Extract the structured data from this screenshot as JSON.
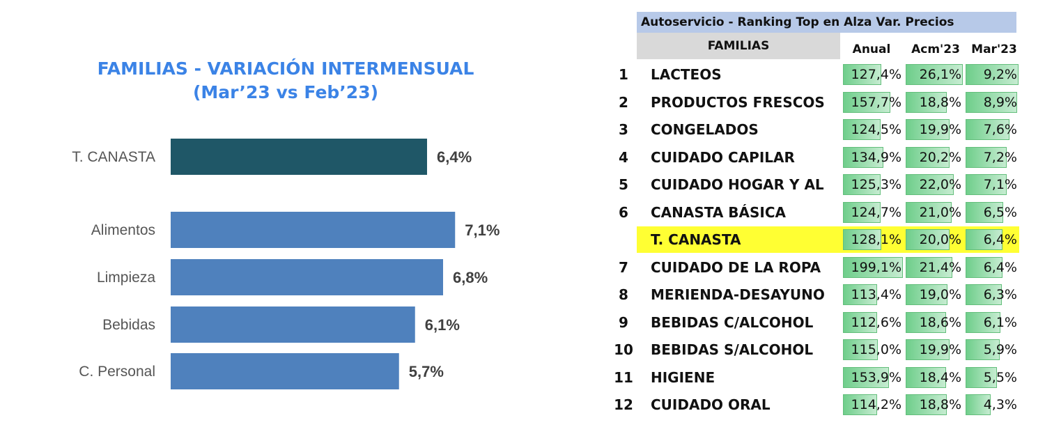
{
  "left_chart": {
    "title_line1": "FAMILIAS - VARIACIÓN INTERMENSUAL",
    "title_line2": "(Mar’23 vs Feb’23)"
  },
  "chart_data": [
    {
      "type": "bar",
      "orientation": "horizontal",
      "title": "FAMILIAS - VARIACIÓN INTERMENSUAL (Mar’23 vs Feb’23)",
      "categories": [
        "T. CANASTA",
        "Alimentos",
        "Limpieza",
        "Bebidas",
        "C. Personal"
      ],
      "values": [
        6.4,
        7.1,
        6.8,
        6.1,
        5.7
      ],
      "value_labels": [
        "6,4%",
        "7,1%",
        "6,8%",
        "6,1%",
        "5,7%"
      ],
      "colors": [
        "#1f5767",
        "#4f81bd",
        "#4f81bd",
        "#4f81bd",
        "#4f81bd"
      ],
      "xlim": [
        0,
        8.5
      ],
      "grid": false
    },
    {
      "type": "table",
      "title": "Autoservicio - Ranking Top en Alza Var. Precios",
      "columns": [
        "FAMILIAS",
        "Anual",
        "Acm'23",
        "Mar'23"
      ],
      "rows": [
        {
          "rank": "1",
          "familia": "LACTEOS",
          "anual": "127,4%",
          "acm": "26,1%",
          "mar": "9,2%",
          "anual_v": 127.4,
          "acm_v": 26.1,
          "mar_v": 9.2
        },
        {
          "rank": "2",
          "familia": "PRODUCTOS FRESCOS",
          "anual": "157,7%",
          "acm": "18,8%",
          "mar": "8,9%",
          "anual_v": 157.7,
          "acm_v": 18.8,
          "mar_v": 8.9
        },
        {
          "rank": "3",
          "familia": "CONGELADOS",
          "anual": "124,5%",
          "acm": "19,9%",
          "mar": "7,6%",
          "anual_v": 124.5,
          "acm_v": 19.9,
          "mar_v": 7.6
        },
        {
          "rank": "4",
          "familia": "CUIDADO CAPILAR",
          "anual": "134,9%",
          "acm": "20,2%",
          "mar": "7,2%",
          "anual_v": 134.9,
          "acm_v": 20.2,
          "mar_v": 7.2
        },
        {
          "rank": "5",
          "familia": "CUIDADO HOGAR Y AL",
          "anual": "125,3%",
          "acm": "22,0%",
          "mar": "7,1%",
          "anual_v": 125.3,
          "acm_v": 22.0,
          "mar_v": 7.1
        },
        {
          "rank": "6",
          "familia": "CANASTA BÁSICA",
          "anual": "124,7%",
          "acm": "21,0%",
          "mar": "6,5%",
          "anual_v": 124.7,
          "acm_v": 21.0,
          "mar_v": 6.5
        },
        {
          "rank": "",
          "familia": "T. CANASTA",
          "anual": "128,1%",
          "acm": "20,0%",
          "mar": "6,4%",
          "anual_v": 128.1,
          "acm_v": 20.0,
          "mar_v": 6.4,
          "highlight": true
        },
        {
          "rank": "7",
          "familia": "CUIDADO DE LA ROPA",
          "anual": "199,1%",
          "acm": "21,4%",
          "mar": "6,4%",
          "anual_v": 199.1,
          "acm_v": 21.4,
          "mar_v": 6.4
        },
        {
          "rank": "8",
          "familia": "MERIENDA-DESAYUNO",
          "anual": "113,4%",
          "acm": "19,0%",
          "mar": "6,3%",
          "anual_v": 113.4,
          "acm_v": 19.0,
          "mar_v": 6.3
        },
        {
          "rank": "9",
          "familia": "BEBIDAS C/ALCOHOL",
          "anual": "112,6%",
          "acm": "18,6%",
          "mar": "6,1%",
          "anual_v": 112.6,
          "acm_v": 18.6,
          "mar_v": 6.1
        },
        {
          "rank": "10",
          "familia": "BEBIDAS S/ALCOHOL",
          "anual": "115,0%",
          "acm": "19,9%",
          "mar": "5,9%",
          "anual_v": 115.0,
          "acm_v": 19.9,
          "mar_v": 5.9
        },
        {
          "rank": "11",
          "familia": "HIGIENE",
          "anual": "153,9%",
          "acm": "18,4%",
          "mar": "5,5%",
          "anual_v": 153.9,
          "acm_v": 18.4,
          "mar_v": 5.5
        },
        {
          "rank": "12",
          "familia": "CUIDADO ORAL",
          "anual": "114,2%",
          "acm": "18,8%",
          "mar": "4,3%",
          "anual_v": 114.2,
          "acm_v": 18.8,
          "mar_v": 4.3
        }
      ]
    }
  ],
  "table": {
    "header_title": "Autoservicio - Ranking Top en Alza Var. Precios",
    "col_familias": "FAMILIAS",
    "col_anual": "Anual",
    "col_acm": "Acm'23",
    "col_mar": "Mar'23"
  }
}
